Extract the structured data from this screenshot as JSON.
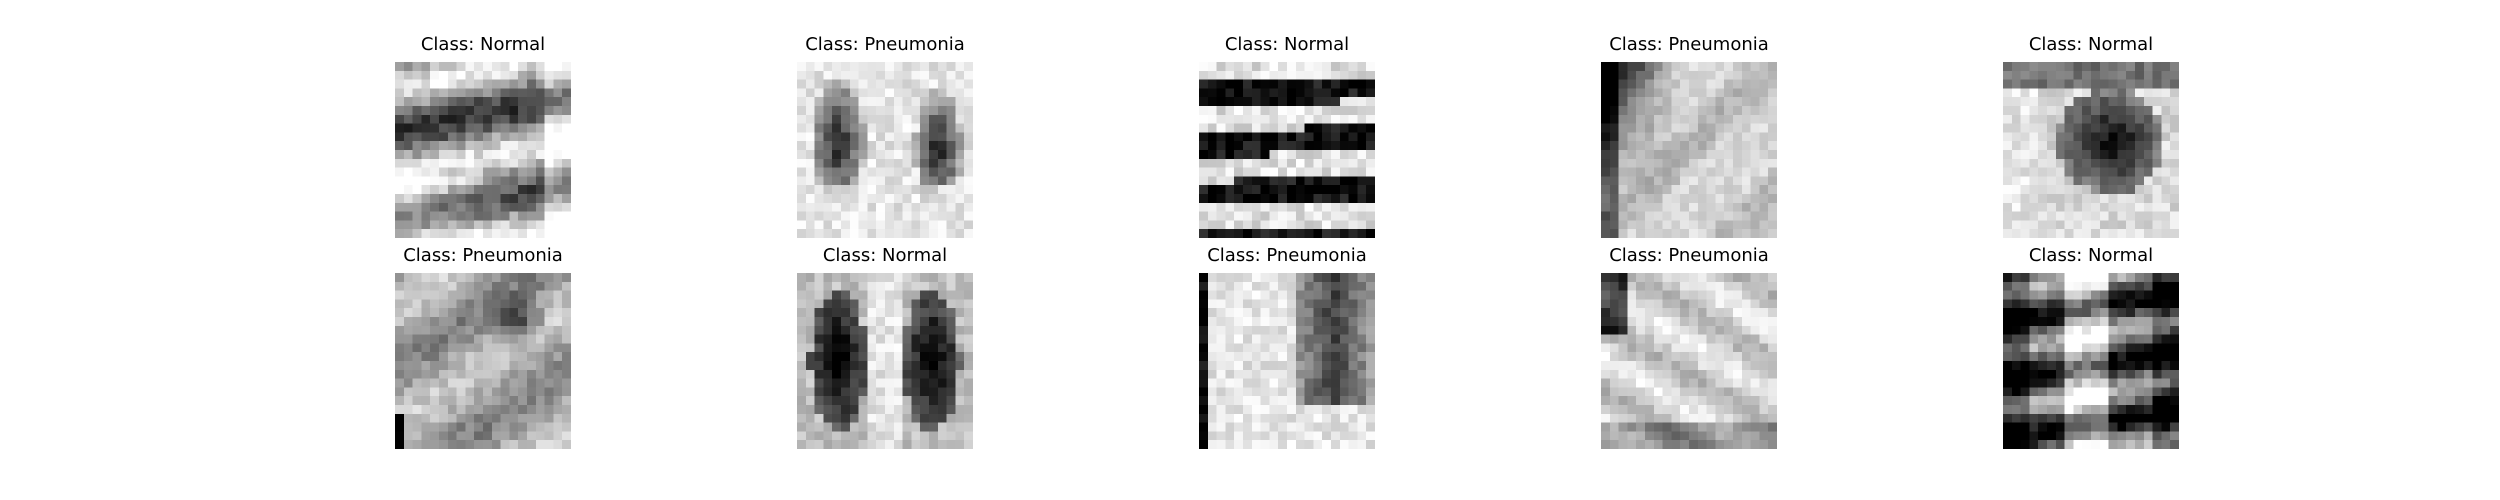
{
  "figure": {
    "panels": [
      {
        "id": "r1c1",
        "title": "Class: Normal"
      },
      {
        "id": "r1c2",
        "title": "Class: Pneumonia"
      },
      {
        "id": "r1c3",
        "title": "Class: Normal"
      },
      {
        "id": "r1c4",
        "title": "Class: Pneumonia"
      },
      {
        "id": "r1c5",
        "title": "Class: Normal"
      },
      {
        "id": "r2c1",
        "title": "Class: Pneumonia"
      },
      {
        "id": "r2c2",
        "title": "Class: Normal"
      },
      {
        "id": "r2c3",
        "title": "Class: Pneumonia"
      },
      {
        "id": "r2c4",
        "title": "Class: Pneumonia"
      },
      {
        "id": "r2c5",
        "title": "Class: Normal"
      }
    ]
  }
}
